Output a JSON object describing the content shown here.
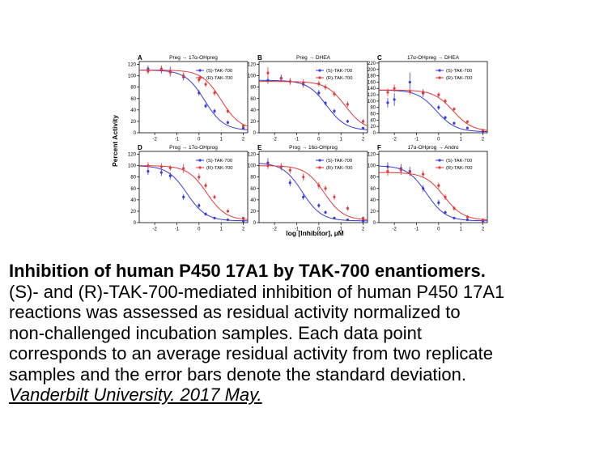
{
  "figure": {
    "y_axis_label": "Percent Activity",
    "x_axis_label": "log [Inhibitor], µM"
  },
  "chart_data": [
    {
      "type": "scatter",
      "panel_letter": "A",
      "title": "Preg → 17α-OHpreg",
      "x_ticks": [
        -2,
        -1,
        0,
        1,
        2
      ],
      "y_ticks": [
        0,
        20,
        40,
        60,
        80,
        100,
        120
      ],
      "xlim": [
        -2.7,
        2.2
      ],
      "ylim": [
        0,
        125
      ],
      "legend_position": "top-right",
      "series": [
        {
          "name": "(S)-TAK-700",
          "color": "#3a3ad8",
          "x": [
            -2.3,
            -1.7,
            -1.3,
            -0.7,
            0,
            0.3,
            0.7,
            1.3,
            2
          ],
          "y": [
            112,
            110,
            108,
            98,
            70,
            47,
            38,
            18,
            8
          ],
          "err": [
            6,
            6,
            8,
            6,
            5,
            4,
            4,
            3,
            2
          ],
          "fit": {
            "top": 110,
            "bottom": 4,
            "logIC50": 0.25,
            "hill": 1.0
          }
        },
        {
          "name": "(R)-TAK-700",
          "color": "#e03a3a",
          "x": [
            -2.3,
            -1.7,
            -1.3,
            -0.7,
            0,
            0.3,
            0.7,
            1.3,
            2
          ],
          "y": [
            108,
            112,
            106,
            100,
            93,
            85,
            70,
            38,
            12
          ],
          "err": [
            5,
            6,
            7,
            6,
            5,
            5,
            5,
            4,
            3
          ],
          "fit": {
            "top": 110,
            "bottom": 5,
            "logIC50": 1.0,
            "hill": 1.0
          }
        }
      ]
    },
    {
      "type": "scatter",
      "panel_letter": "B",
      "title": "Preg → DHEA",
      "x_ticks": [
        -2,
        -1,
        0,
        1,
        2
      ],
      "y_ticks": [
        0,
        20,
        40,
        60,
        80,
        100,
        120
      ],
      "xlim": [
        -2.7,
        2.2
      ],
      "ylim": [
        0,
        125
      ],
      "legend_position": "top-right",
      "series": [
        {
          "name": "(S)-TAK-700",
          "color": "#3a3ad8",
          "x": [
            -2.3,
            -1.7,
            -1.3,
            -0.7,
            0,
            0.3,
            0.7,
            1.3,
            2
          ],
          "y": [
            92,
            96,
            90,
            85,
            70,
            52,
            38,
            20,
            8
          ],
          "err": [
            6,
            6,
            5,
            6,
            5,
            4,
            4,
            3,
            2
          ],
          "fit": {
            "top": 92,
            "bottom": 4,
            "logIC50": 0.35,
            "hill": 1.0
          }
        },
        {
          "name": "(R)-TAK-700",
          "color": "#e03a3a",
          "x": [
            -2.3,
            -1.7,
            -1.3,
            -0.7,
            0,
            0.3,
            0.7,
            1.3,
            2
          ],
          "y": [
            105,
            95,
            90,
            88,
            86,
            80,
            68,
            50,
            20
          ],
          "err": [
            10,
            6,
            6,
            6,
            5,
            5,
            5,
            5,
            4
          ],
          "fit": {
            "top": 90,
            "bottom": 4,
            "logIC50": 1.2,
            "hill": 1.0
          }
        }
      ]
    },
    {
      "type": "scatter",
      "panel_letter": "C",
      "title": "17α-OHpreg → DHEA",
      "x_ticks": [
        -2,
        -1,
        0,
        1,
        2
      ],
      "y_ticks": [
        0,
        20,
        40,
        60,
        80,
        100,
        120,
        140,
        160,
        180,
        200,
        220
      ],
      "xlim": [
        -2.7,
        2.2
      ],
      "ylim": [
        0,
        225
      ],
      "legend_position": "top-right",
      "series": [
        {
          "name": "(S)-TAK-700",
          "color": "#3a3ad8",
          "x": [
            -2.3,
            -2,
            -1.3,
            -0.7,
            0,
            0.3,
            0.7,
            1.3,
            2
          ],
          "y": [
            95,
            105,
            160,
            125,
            80,
            48,
            30,
            15,
            5
          ],
          "err": [
            15,
            20,
            30,
            12,
            8,
            6,
            5,
            3,
            2
          ],
          "fit": {
            "top": 135,
            "bottom": 3,
            "logIC50": -0.1,
            "hill": 1.0
          }
        },
        {
          "name": "(R)-TAK-700",
          "color": "#e03a3a",
          "x": [
            -2.3,
            -2,
            -1.3,
            -0.7,
            0,
            0.3,
            0.7,
            1.3,
            2
          ],
          "y": [
            128,
            140,
            130,
            128,
            120,
            100,
            75,
            35,
            8
          ],
          "err": [
            12,
            12,
            10,
            10,
            8,
            8,
            6,
            5,
            3
          ],
          "fit": {
            "top": 135,
            "bottom": 4,
            "logIC50": 0.65,
            "hill": 1.0
          }
        }
      ]
    },
    {
      "type": "scatter",
      "panel_letter": "D",
      "title": "Prog → 17α-OHprog",
      "x_ticks": [
        -2,
        -1,
        0,
        1,
        2
      ],
      "y_ticks": [
        0,
        20,
        40,
        60,
        80,
        100,
        120
      ],
      "xlim": [
        -2.7,
        2.2
      ],
      "ylim": [
        0,
        125
      ],
      "legend_position": "top-right",
      "series": [
        {
          "name": "(S)-TAK-700",
          "color": "#3a3ad8",
          "x": [
            -2.3,
            -1.7,
            -1.3,
            -0.7,
            0,
            0.3,
            0.7,
            1.3,
            2
          ],
          "y": [
            90,
            88,
            82,
            45,
            30,
            15,
            8,
            5,
            3
          ],
          "err": [
            6,
            6,
            6,
            5,
            4,
            3,
            2,
            2,
            1
          ],
          "fit": {
            "top": 100,
            "bottom": 3,
            "logIC50": -0.55,
            "hill": 1.0
          }
        },
        {
          "name": "(R)-TAK-700",
          "color": "#e03a3a",
          "x": [
            -2.3,
            -1.7,
            -1.3,
            -0.7,
            0,
            0.3,
            0.7,
            1.3,
            2
          ],
          "y": [
            100,
            98,
            96,
            95,
            80,
            65,
            45,
            20,
            8
          ],
          "err": [
            6,
            6,
            5,
            8,
            6,
            5,
            4,
            3,
            2
          ],
          "fit": {
            "top": 100,
            "bottom": 4,
            "logIC50": 0.35,
            "hill": 1.0
          }
        }
      ]
    },
    {
      "type": "scatter",
      "panel_letter": "E",
      "title": "Prog → 16α-OHprog",
      "x_ticks": [
        -2,
        -1,
        0,
        1,
        2
      ],
      "y_ticks": [
        0,
        20,
        40,
        60,
        80,
        100,
        120
      ],
      "xlim": [
        -2.7,
        2.2
      ],
      "ylim": [
        0,
        125
      ],
      "legend_position": "top-right",
      "series": [
        {
          "name": "(S)-TAK-700",
          "color": "#3a3ad8",
          "x": [
            -2.3,
            -1.7,
            -1.3,
            -0.7,
            0,
            0.3,
            0.7,
            1.3,
            2
          ],
          "y": [
            105,
            98,
            70,
            45,
            30,
            18,
            8,
            5,
            3
          ],
          "err": [
            8,
            6,
            6,
            5,
            4,
            3,
            2,
            2,
            1
          ],
          "fit": {
            "top": 105,
            "bottom": 3,
            "logIC50": -0.75,
            "hill": 1.0
          }
        },
        {
          "name": "(R)-TAK-700",
          "color": "#e03a3a",
          "x": [
            -2.3,
            -1.7,
            -1.3,
            -0.7,
            0,
            0.3,
            0.7,
            1.3,
            2
          ],
          "y": [
            100,
            98,
            92,
            80,
            65,
            60,
            45,
            25,
            8
          ],
          "err": [
            6,
            6,
            6,
            6,
            6,
            5,
            5,
            4,
            2
          ],
          "fit": {
            "top": 100,
            "bottom": 4,
            "logIC50": 0.25,
            "hill": 1.0
          }
        }
      ]
    },
    {
      "type": "scatter",
      "panel_letter": "F",
      "title": "17α-OHprog → Andro",
      "x_ticks": [
        -2,
        -1,
        0,
        1,
        2
      ],
      "y_ticks": [
        0,
        20,
        40,
        60,
        80,
        100,
        120
      ],
      "xlim": [
        -2.7,
        2.2
      ],
      "ylim": [
        0,
        125
      ],
      "legend_position": "top-right",
      "series": [
        {
          "name": "(S)-TAK-700",
          "color": "#3a3ad8",
          "x": [
            -2.3,
            -1.7,
            -1.3,
            -0.7,
            0,
            0.3,
            0.7,
            1.3,
            2
          ],
          "y": [
            98,
            95,
            90,
            60,
            35,
            18,
            8,
            5,
            3
          ],
          "err": [
            8,
            8,
            8,
            6,
            5,
            3,
            2,
            2,
            1
          ],
          "fit": {
            "top": 100,
            "bottom": 3,
            "logIC50": -0.55,
            "hill": 1.0
          }
        },
        {
          "name": "(R)-TAK-700",
          "color": "#e03a3a",
          "x": [
            -2.3,
            -1.7,
            -1.3,
            -0.7,
            0,
            0.3,
            0.7,
            1.3,
            2
          ],
          "y": [
            90,
            92,
            88,
            85,
            65,
            45,
            25,
            10,
            5
          ],
          "err": [
            8,
            8,
            6,
            6,
            5,
            5,
            4,
            3,
            2
          ],
          "fit": {
            "top": 88,
            "bottom": 4,
            "logIC50": 0.25,
            "hill": 1.0
          }
        }
      ]
    }
  ],
  "caption": {
    "title": "Inhibition of human P450 17A1 by TAK-700 enantiomers.",
    "line1": "(S)- and (R)-TAK-700-mediated inhibition of human P450 17A1",
    "line2": "reactions was assessed as residual activity normalized to",
    "line3": "non-challenged incubation samples. Each data point",
    "line4": "corresponds to an average residual activity from two replicate",
    "line5": "samples and the error bars denote the standard deviation.",
    "credit": "Vanderbilt University. 2017 May."
  }
}
